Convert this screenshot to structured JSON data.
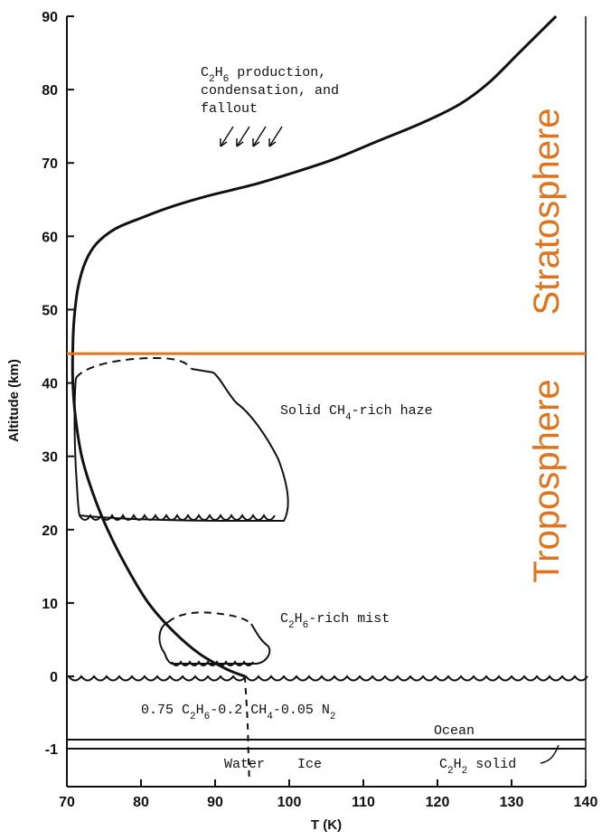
{
  "chart_data": {
    "type": "line",
    "title": "",
    "xlabel": "T (K)",
    "ylabel": "Altitude (km)",
    "xlim": [
      70,
      140
    ],
    "ylim": [
      -1.5,
      90
    ],
    "x_ticks": [
      70,
      80,
      90,
      100,
      110,
      120,
      130,
      140
    ],
    "x_tick_labels": [
      "70",
      "80",
      "90",
      "100",
      "110",
      "120",
      "130",
      "140"
    ],
    "y_ticks": [
      -1,
      0,
      10,
      20,
      30,
      40,
      50,
      60,
      70,
      80,
      90
    ],
    "y_tick_labels": [
      "-1",
      "0",
      "10",
      "20",
      "30",
      "40",
      "50",
      "60",
      "70",
      "80",
      "90"
    ],
    "grid": false,
    "series": [
      {
        "style": "solid",
        "x": [
          136,
          134,
          131,
          127,
          123,
          118,
          112,
          106,
          100,
          95,
          89,
          84,
          80,
          76.5,
          74,
          72.5,
          71.5,
          71,
          70.8,
          70.8,
          71.2,
          72,
          73.5,
          75.5,
          78,
          81,
          84.5,
          88,
          91.5,
          94
        ],
        "y": [
          90,
          88,
          85,
          81,
          78,
          75.5,
          73,
          70.5,
          68.5,
          67,
          65.5,
          64,
          62.5,
          61,
          59,
          56.5,
          53,
          49,
          45,
          40,
          35,
          30,
          25,
          20,
          15,
          10,
          6,
          3,
          1,
          0
        ]
      },
      {
        "style": "dashed",
        "x": [
          94,
          94.2,
          94.4,
          94.5,
          94.6
        ],
        "y": [
          0,
          -0.3,
          -0.7,
          -1.1,
          -1.4
        ]
      }
    ],
    "regions": [
      {
        "name": "haze",
        "label_parts": [
          "Solid CH",
          "4",
          "-rich haze"
        ]
      },
      {
        "name": "mist",
        "label_parts": [
          "C",
          "2",
          "H",
          "6",
          "-rich mist"
        ]
      }
    ],
    "boundary": {
      "altitude": 44,
      "color": "#e0731c"
    },
    "annotations": {
      "ethane_top": [
        "C",
        "2",
        "H",
        "6",
        " production,"
      ],
      "ethane_mid": "condensation, and",
      "ethane_bot": "fallout",
      "ocean_comp": [
        "0.75 C",
        "2",
        "H",
        "6",
        "-0.2 CH",
        "4",
        "-0.05 N",
        "2"
      ],
      "ocean": "Ocean",
      "water_ice": "Water    Ice",
      "c2h2": [
        "C",
        "2",
        "H",
        "2",
        " solid"
      ],
      "stratosphere": "Stratosphere",
      "troposphere": "Troposphere"
    }
  }
}
